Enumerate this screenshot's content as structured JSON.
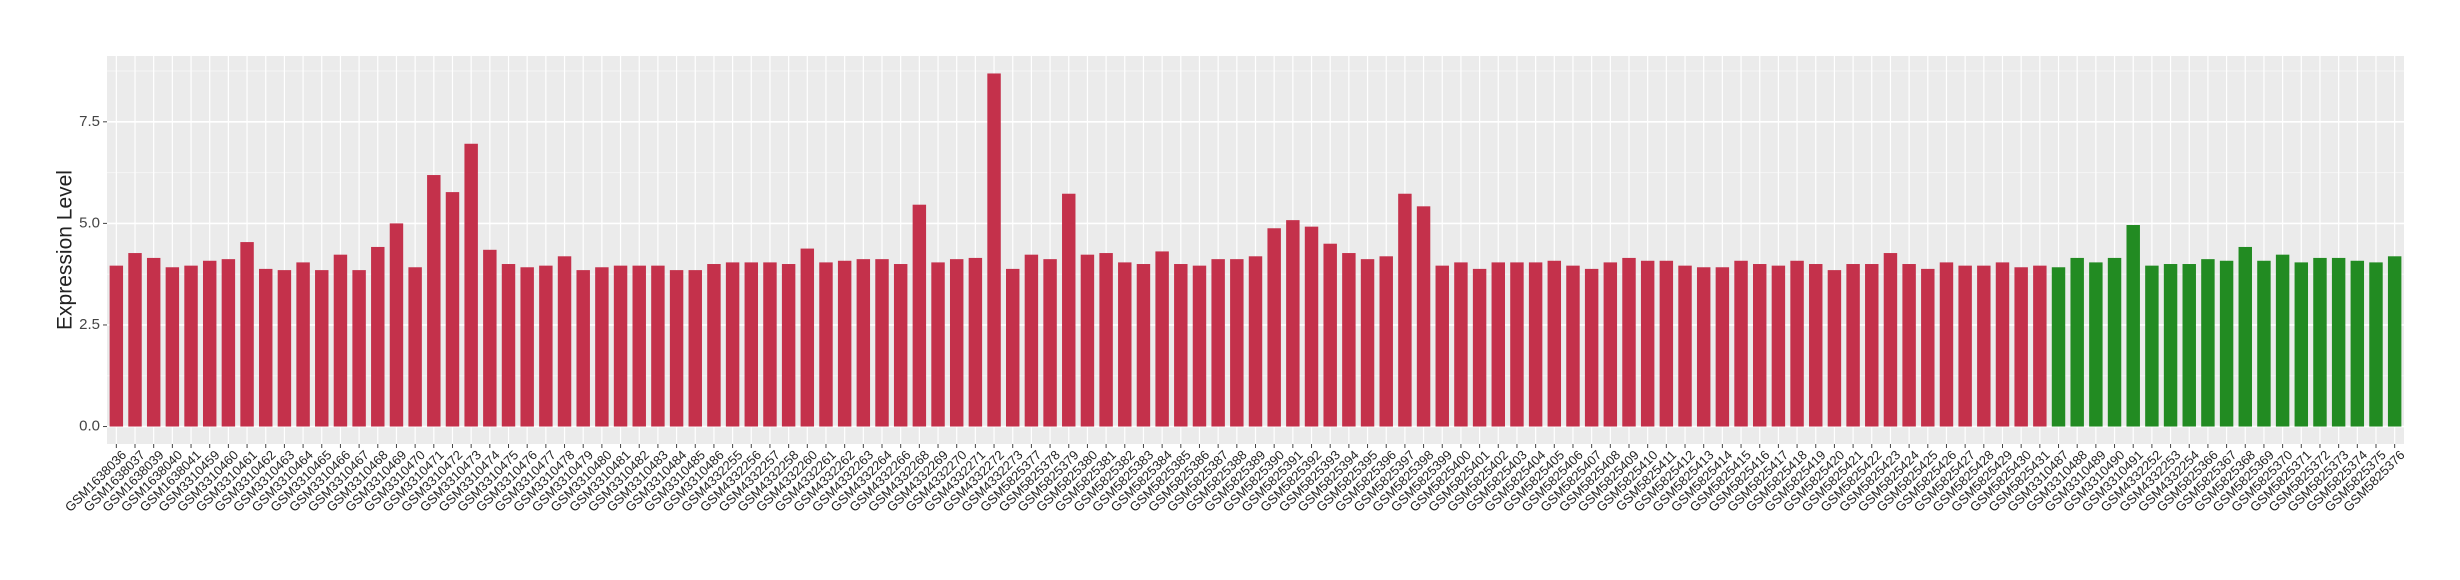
{
  "chart_data": {
    "type": "bar",
    "y_label": "Expression Level",
    "categories": [
      "GSM1638036",
      "GSM1638037",
      "GSM1638039",
      "GSM1638040",
      "GSM1638041",
      "GSM3310459",
      "GSM3310460",
      "GSM3310461",
      "GSM3310462",
      "GSM3310463",
      "GSM3310464",
      "GSM3310465",
      "GSM3310466",
      "GSM3310467",
      "GSM3310468",
      "GSM3310469",
      "GSM3310470",
      "GSM3310471",
      "GSM3310472",
      "GSM3310473",
      "GSM3310474",
      "GSM3310475",
      "GSM3310476",
      "GSM3310477",
      "GSM3310478",
      "GSM3310479",
      "GSM3310480",
      "GSM3310481",
      "GSM3310482",
      "GSM3310483",
      "GSM3310484",
      "GSM3310485",
      "GSM3310486",
      "GSM4332255",
      "GSM4332256",
      "GSM4332257",
      "GSM4332258",
      "GSM4332260",
      "GSM4332261",
      "GSM4332262",
      "GSM4332263",
      "GSM4332264",
      "GSM4332266",
      "GSM4332268",
      "GSM4332269",
      "GSM4332270",
      "GSM4332271",
      "GSM4332272",
      "GSM4332273",
      "GSM5825377",
      "GSM5825378",
      "GSM5825379",
      "GSM5825380",
      "GSM5825381",
      "GSM5825382",
      "GSM5825383",
      "GSM5825384",
      "GSM5825385",
      "GSM5825386",
      "GSM5825387",
      "GSM5825388",
      "GSM5825389",
      "GSM5825390",
      "GSM5825391",
      "GSM5825392",
      "GSM5825393",
      "GSM5825394",
      "GSM5825395",
      "GSM5825396",
      "GSM5825397",
      "GSM5825398",
      "GSM5825399",
      "GSM5825400",
      "GSM5825401",
      "GSM5825402",
      "GSM5825403",
      "GSM5825404",
      "GSM5825405",
      "GSM5825406",
      "GSM5825407",
      "GSM5825408",
      "GSM5825409",
      "GSM5825410",
      "GSM5825411",
      "GSM5825412",
      "GSM5825413",
      "GSM5825414",
      "GSM5825415",
      "GSM5825416",
      "GSM5825417",
      "GSM5825418",
      "GSM5825419",
      "GSM5825420",
      "GSM5825421",
      "GSM5825422",
      "GSM5825423",
      "GSM5825424",
      "GSM5825425",
      "GSM5825426",
      "GSM5825427",
      "GSM5825428",
      "GSM5825429",
      "GSM5825430",
      "GSM5825431",
      "GSM3310487",
      "GSM3310488",
      "GSM3310489",
      "GSM3310490",
      "GSM3310491",
      "GSM4332252",
      "GSM4332253",
      "GSM4332254",
      "GSM5825366",
      "GSM5825367",
      "GSM5825368",
      "GSM5825369",
      "GSM5825370",
      "GSM5825371",
      "GSM5825372",
      "GSM5825373",
      "GSM5825374",
      "GSM5825375",
      "GSM5825376"
    ],
    "values": [
      3.96,
      4.27,
      4.15,
      3.92,
      3.96,
      4.08,
      4.12,
      4.54,
      3.88,
      3.85,
      4.04,
      3.85,
      4.23,
      3.85,
      4.42,
      5.0,
      3.92,
      6.19,
      5.77,
      6.96,
      4.35,
      4.0,
      3.92,
      3.96,
      4.19,
      3.85,
      3.92,
      3.96,
      3.96,
      3.96,
      3.85,
      3.85,
      4.0,
      4.04,
      4.04,
      4.04,
      4.0,
      4.38,
      4.04,
      4.08,
      4.12,
      4.12,
      4.0,
      5.46,
      4.04,
      4.12,
      4.15,
      8.69,
      3.88,
      4.23,
      4.12,
      5.73,
      4.23,
      4.27,
      4.04,
      4.0,
      4.31,
      4.0,
      3.96,
      4.12,
      4.12,
      4.19,
      4.88,
      5.08,
      4.92,
      4.5,
      4.27,
      4.12,
      4.19,
      5.73,
      5.42,
      3.96,
      4.04,
      3.88,
      4.04,
      4.04,
      4.04,
      4.08,
      3.96,
      3.88,
      4.04,
      4.15,
      4.08,
      4.08,
      3.96,
      3.92,
      3.92,
      4.08,
      4.0,
      3.96,
      4.08,
      4.0,
      3.85,
      4.0,
      4.0,
      4.27,
      4.0,
      3.88,
      4.04,
      3.96,
      3.96,
      4.04,
      3.92,
      3.96,
      3.92,
      4.15,
      4.04,
      4.15,
      4.96,
      3.96,
      4.0,
      4.0,
      4.12,
      4.08,
      4.42,
      4.08,
      4.23,
      4.04,
      4.15,
      4.15,
      4.08,
      4.04,
      4.19
    ],
    "colors": [
      "#c4314b",
      "#c4314b",
      "#c4314b",
      "#c4314b",
      "#c4314b",
      "#c4314b",
      "#c4314b",
      "#c4314b",
      "#c4314b",
      "#c4314b",
      "#c4314b",
      "#c4314b",
      "#c4314b",
      "#c4314b",
      "#c4314b",
      "#c4314b",
      "#c4314b",
      "#c4314b",
      "#c4314b",
      "#c4314b",
      "#c4314b",
      "#c4314b",
      "#c4314b",
      "#c4314b",
      "#c4314b",
      "#c4314b",
      "#c4314b",
      "#c4314b",
      "#c4314b",
      "#c4314b",
      "#c4314b",
      "#c4314b",
      "#c4314b",
      "#c4314b",
      "#c4314b",
      "#c4314b",
      "#c4314b",
      "#c4314b",
      "#c4314b",
      "#c4314b",
      "#c4314b",
      "#c4314b",
      "#c4314b",
      "#c4314b",
      "#c4314b",
      "#c4314b",
      "#c4314b",
      "#c4314b",
      "#c4314b",
      "#c4314b",
      "#c4314b",
      "#c4314b",
      "#c4314b",
      "#c4314b",
      "#c4314b",
      "#c4314b",
      "#c4314b",
      "#c4314b",
      "#c4314b",
      "#c4314b",
      "#c4314b",
      "#c4314b",
      "#c4314b",
      "#c4314b",
      "#c4314b",
      "#c4314b",
      "#c4314b",
      "#c4314b",
      "#c4314b",
      "#c4314b",
      "#c4314b",
      "#c4314b",
      "#c4314b",
      "#c4314b",
      "#c4314b",
      "#c4314b",
      "#c4314b",
      "#c4314b",
      "#c4314b",
      "#c4314b",
      "#c4314b",
      "#c4314b",
      "#c4314b",
      "#c4314b",
      "#c4314b",
      "#c4314b",
      "#c4314b",
      "#c4314b",
      "#c4314b",
      "#c4314b",
      "#c4314b",
      "#c4314b",
      "#c4314b",
      "#c4314b",
      "#c4314b",
      "#c4314b",
      "#c4314b",
      "#c4314b",
      "#c4314b",
      "#c4314b",
      "#c4314b",
      "#c4314b",
      "#c4314b",
      "#c4314b",
      "#228b22",
      "#228b22",
      "#228b22",
      "#228b22",
      "#228b22",
      "#228b22",
      "#228b22",
      "#228b22",
      "#228b22",
      "#228b22",
      "#228b22",
      "#228b22",
      "#228b22",
      "#228b22",
      "#228b22",
      "#228b22",
      "#228b22",
      "#228b22",
      "#228b22"
    ],
    "ylim": [
      -0.43,
      9.12
    ],
    "yticks": [
      {
        "value": 0,
        "label": "0.0"
      },
      {
        "value": 2.5,
        "label": "2.5"
      },
      {
        "value": 5,
        "label": "5.0"
      },
      {
        "value": 7.5,
        "label": "7.5"
      }
    ],
    "grid": true
  }
}
